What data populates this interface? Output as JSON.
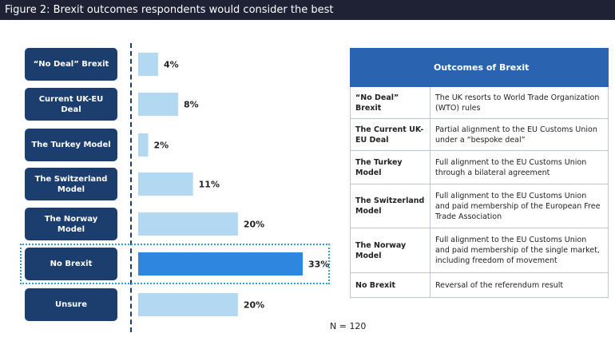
{
  "figure_title": "Figure 2: Brexit outcomes respondents would consider the best",
  "footnote": "N = 120",
  "colors": {
    "bar": "#b3d9f2",
    "bar_highlight": "#2e86de",
    "box": "#1b3e6f",
    "header": "#2a63b0"
  },
  "chart_data": {
    "type": "bar",
    "orientation": "horizontal",
    "categories": [
      "“No Deal” Brexit",
      "Current UK-EU Deal",
      "The Turkey Model",
      "The Switzerland Model",
      "The Norway Model",
      "No Brexit",
      "Unsure"
    ],
    "values": [
      4,
      8,
      2,
      11,
      20,
      33,
      20
    ],
    "value_labels": [
      "4%",
      "8%",
      "2%",
      "11%",
      "20%",
      "33%",
      "20%"
    ],
    "highlighted_category": "No Brexit",
    "unit": "%",
    "xlim": [
      0,
      33
    ]
  },
  "table": {
    "header": "Outcomes of Brexit",
    "rows": [
      {
        "term": "“No Deal” Brexit",
        "desc": "The UK resorts to World Trade Organization (WTO) rules"
      },
      {
        "term": "The Current UK-EU Deal",
        "desc": "Partial alignment to the EU Customs Union under a “bespoke deal”"
      },
      {
        "term": "The Turkey Model",
        "desc": "Full alignment to the EU Customs Union through a bilateral agreement"
      },
      {
        "term": "The Switzerland Model",
        "desc": "Full alignment to the EU Customs Union and paid membership of the European Free Trade Association"
      },
      {
        "term": "The Norway Model",
        "desc": "Full alignment to the EU Customs Union and paid membership of the single market, including freedom of movement"
      },
      {
        "term": "No Brexit",
        "desc": "Reversal of the referendum result"
      }
    ]
  }
}
